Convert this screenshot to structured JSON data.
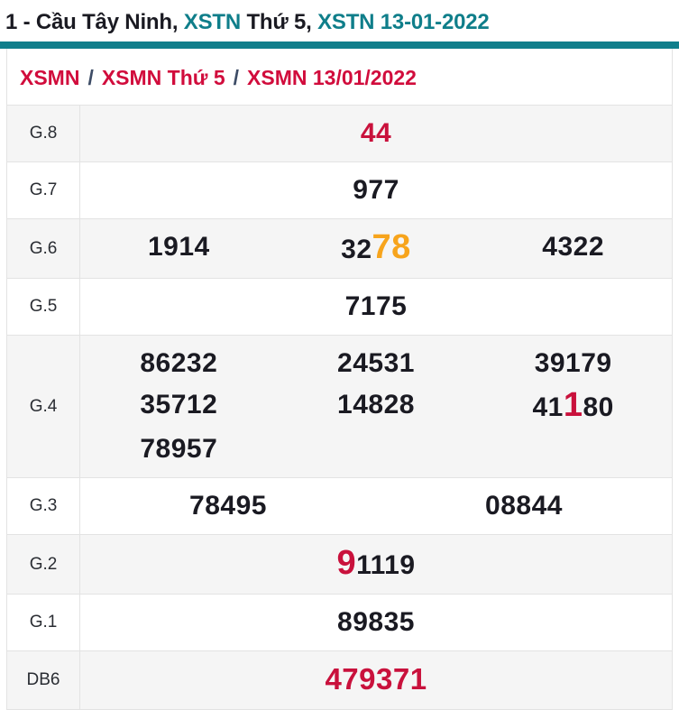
{
  "colors": {
    "teal_accent": "#107E8B",
    "red_accent": "#C9113C",
    "orange_highlight": "#F7A41C",
    "dark_text": "#1A1A22",
    "border": "#E3E3E3",
    "row_stripe": "#F5F5F5",
    "breadcrumb_separator": "#3D4C66"
  },
  "header": {
    "title_parts": [
      {
        "text": "1 - Cầu Tây Ninh, ",
        "style": "dark",
        "link": false
      },
      {
        "text": "XSTN",
        "style": "teal",
        "link": true
      },
      {
        "text": " Thứ 5, ",
        "style": "dark",
        "link": false
      },
      {
        "text": "XSTN 13-01-2022",
        "style": "teal",
        "link": true
      }
    ]
  },
  "breadcrumb": {
    "separator": "/",
    "items": [
      {
        "label": "XSMN"
      },
      {
        "label": "XSMN Thứ 5"
      },
      {
        "label": "XSMN 13/01/2022"
      }
    ]
  },
  "table": {
    "rows": [
      {
        "label": "G.8",
        "cols": 1,
        "values": [
          {
            "parts": [
              {
                "t": "44",
                "s": "r"
              }
            ]
          }
        ]
      },
      {
        "label": "G.7",
        "cols": 1,
        "values": [
          {
            "parts": [
              {
                "t": "977"
              }
            ]
          }
        ]
      },
      {
        "label": "G.6",
        "cols": 3,
        "values": [
          {
            "parts": [
              {
                "t": "1914"
              }
            ]
          },
          {
            "parts": [
              {
                "t": "32"
              },
              {
                "t": "78",
                "s": "ob"
              }
            ]
          },
          {
            "parts": [
              {
                "t": "4322"
              }
            ]
          }
        ]
      },
      {
        "label": "G.5",
        "cols": 1,
        "values": [
          {
            "parts": [
              {
                "t": "7175"
              }
            ]
          }
        ]
      },
      {
        "label": "G.4",
        "cols": 3,
        "values": [
          {
            "parts": [
              {
                "t": "86232"
              }
            ]
          },
          {
            "parts": [
              {
                "t": "24531"
              }
            ]
          },
          {
            "parts": [
              {
                "t": "39179"
              }
            ]
          },
          {
            "parts": [
              {
                "t": "35712"
              }
            ]
          },
          {
            "parts": [
              {
                "t": "14828"
              }
            ]
          },
          {
            "parts": [
              {
                "t": "41"
              },
              {
                "t": "1",
                "s": "rb"
              },
              {
                "t": "80"
              }
            ]
          },
          {
            "parts": [
              {
                "t": "78957"
              }
            ]
          }
        ]
      },
      {
        "label": "G.3",
        "cols": 2,
        "values": [
          {
            "parts": [
              {
                "t": "78495"
              }
            ]
          },
          {
            "parts": [
              {
                "t": "08844"
              }
            ]
          }
        ]
      },
      {
        "label": "G.2",
        "cols": 1,
        "values": [
          {
            "parts": [
              {
                "t": "9",
                "s": "rb"
              },
              {
                "t": "1119"
              }
            ]
          }
        ]
      },
      {
        "label": "G.1",
        "cols": 1,
        "values": [
          {
            "parts": [
              {
                "t": "89835"
              }
            ]
          }
        ]
      },
      {
        "label": "DB6",
        "cols": 1,
        "values": [
          {
            "parts": [
              {
                "t": "479371",
                "s": "rl"
              }
            ]
          }
        ]
      }
    ]
  }
}
